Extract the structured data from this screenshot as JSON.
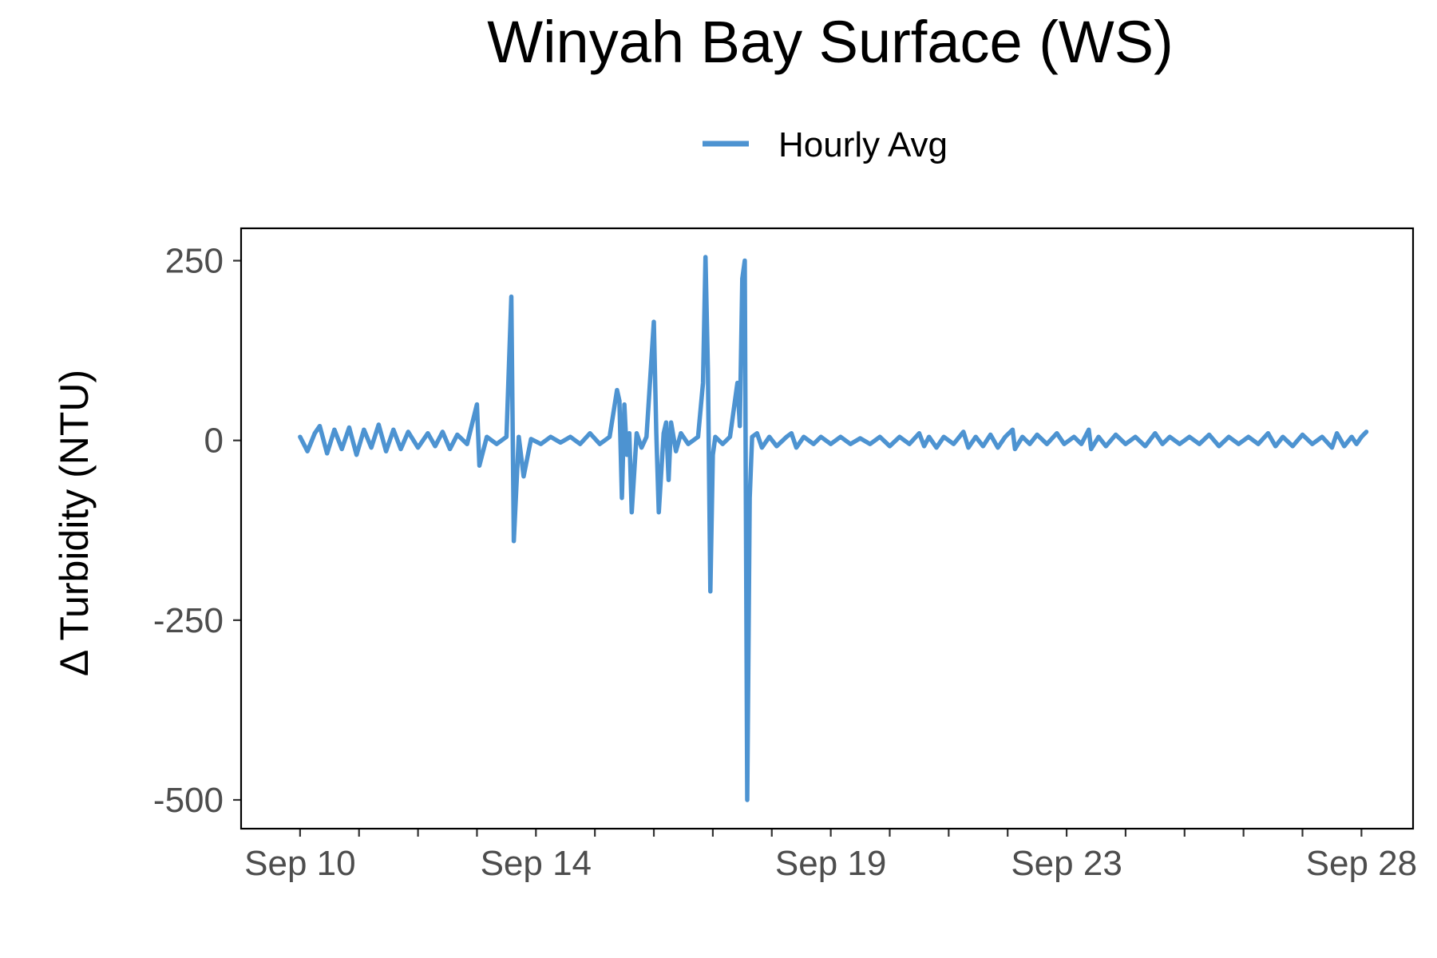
{
  "chart_data": {
    "type": "line",
    "title": "Winyah Bay Surface (WS)",
    "ylabel": "Δ Turbidity (NTU)",
    "xlabel": "",
    "legend_position": "top",
    "grid": false,
    "x_tick_labels": [
      {
        "date": "2022-09-10",
        "label": "Sep 10"
      },
      {
        "date": "2022-09-14",
        "label": "Sep 14"
      },
      {
        "date": "2022-09-19",
        "label": "Sep 19"
      },
      {
        "date": "2022-09-23",
        "label": "Sep 23"
      },
      {
        "date": "2022-09-28",
        "label": "Sep 28"
      }
    ],
    "x_minor_ticks": [
      "2022-09-11",
      "2022-09-12",
      "2022-09-13",
      "2022-09-15",
      "2022-09-16",
      "2022-09-17",
      "2022-09-18",
      "2022-09-20",
      "2022-09-21",
      "2022-09-22",
      "2022-09-24",
      "2022-09-25",
      "2022-09-26",
      "2022-09-27"
    ],
    "xlim": [
      "2022-09-09 00:00",
      "2022-09-28 21:00"
    ],
    "y_ticks": [
      250,
      0,
      -250,
      -500
    ],
    "y_tick_labels": [
      "250",
      "0",
      "-250",
      "-500"
    ],
    "ylim": [
      -540,
      295
    ],
    "series": [
      {
        "name": "Hourly Avg",
        "color": "#4d93d1",
        "points": [
          [
            "2022-09-10 00:00",
            5
          ],
          [
            "2022-09-10 03:00",
            -15
          ],
          [
            "2022-09-10 06:00",
            10
          ],
          [
            "2022-09-10 08:00",
            20
          ],
          [
            "2022-09-10 11:00",
            -18
          ],
          [
            "2022-09-10 14:00",
            15
          ],
          [
            "2022-09-10 17:00",
            -12
          ],
          [
            "2022-09-10 20:00",
            18
          ],
          [
            "2022-09-10 23:00",
            -20
          ],
          [
            "2022-09-11 02:00",
            15
          ],
          [
            "2022-09-11 05:00",
            -10
          ],
          [
            "2022-09-11 08:00",
            22
          ],
          [
            "2022-09-11 11:00",
            -15
          ],
          [
            "2022-09-11 14:00",
            15
          ],
          [
            "2022-09-11 17:00",
            -12
          ],
          [
            "2022-09-11 20:00",
            12
          ],
          [
            "2022-09-12 00:00",
            -10
          ],
          [
            "2022-09-12 04:00",
            10
          ],
          [
            "2022-09-12 07:00",
            -8
          ],
          [
            "2022-09-12 10:00",
            12
          ],
          [
            "2022-09-12 13:00",
            -12
          ],
          [
            "2022-09-12 16:00",
            8
          ],
          [
            "2022-09-12 20:00",
            -5
          ],
          [
            "2022-09-13 00:00",
            50
          ],
          [
            "2022-09-13 01:00",
            -35
          ],
          [
            "2022-09-13 04:00",
            5
          ],
          [
            "2022-09-13 08:00",
            -5
          ],
          [
            "2022-09-13 12:00",
            5
          ],
          [
            "2022-09-13 14:00",
            200
          ],
          [
            "2022-09-13 15:00",
            -140
          ],
          [
            "2022-09-13 17:00",
            5
          ],
          [
            "2022-09-13 19:00",
            -50
          ],
          [
            "2022-09-13 22:00",
            2
          ],
          [
            "2022-09-14 02:00",
            -5
          ],
          [
            "2022-09-14 06:00",
            5
          ],
          [
            "2022-09-14 10:00",
            -3
          ],
          [
            "2022-09-14 14:00",
            5
          ],
          [
            "2022-09-14 18:00",
            -5
          ],
          [
            "2022-09-14 22:00",
            10
          ],
          [
            "2022-09-15 02:00",
            -5
          ],
          [
            "2022-09-15 06:00",
            5
          ],
          [
            "2022-09-15 09:00",
            70
          ],
          [
            "2022-09-15 10:00",
            55
          ],
          [
            "2022-09-15 11:00",
            -80
          ],
          [
            "2022-09-15 12:00",
            50
          ],
          [
            "2022-09-15 13:00",
            -20
          ],
          [
            "2022-09-15 14:00",
            10
          ],
          [
            "2022-09-15 15:00",
            -100
          ],
          [
            "2022-09-15 17:00",
            10
          ],
          [
            "2022-09-15 19:00",
            -10
          ],
          [
            "2022-09-15 21:00",
            5
          ],
          [
            "2022-09-16 00:00",
            165
          ],
          [
            "2022-09-16 01:00",
            10
          ],
          [
            "2022-09-16 02:00",
            -100
          ],
          [
            "2022-09-16 04:00",
            10
          ],
          [
            "2022-09-16 05:00",
            25
          ],
          [
            "2022-09-16 06:00",
            -55
          ],
          [
            "2022-09-16 07:00",
            25
          ],
          [
            "2022-09-16 09:00",
            -15
          ],
          [
            "2022-09-16 11:00",
            10
          ],
          [
            "2022-09-16 14:00",
            -5
          ],
          [
            "2022-09-16 18:00",
            5
          ],
          [
            "2022-09-16 20:00",
            80
          ],
          [
            "2022-09-16 21:00",
            255
          ],
          [
            "2022-09-16 22:00",
            100
          ],
          [
            "2022-09-16 23:00",
            -210
          ],
          [
            "2022-09-17 00:00",
            -20
          ],
          [
            "2022-09-17 01:00",
            5
          ],
          [
            "2022-09-17 04:00",
            -5
          ],
          [
            "2022-09-17 07:00",
            5
          ],
          [
            "2022-09-17 10:00",
            80
          ],
          [
            "2022-09-17 11:00",
            20
          ],
          [
            "2022-09-17 12:00",
            225
          ],
          [
            "2022-09-17 13:00",
            250
          ],
          [
            "2022-09-17 14:00",
            -500
          ],
          [
            "2022-09-17 15:00",
            -80
          ],
          [
            "2022-09-17 16:00",
            5
          ],
          [
            "2022-09-17 18:00",
            10
          ],
          [
            "2022-09-17 20:00",
            -10
          ],
          [
            "2022-09-17 23:00",
            5
          ],
          [
            "2022-09-18 02:00",
            -8
          ],
          [
            "2022-09-18 06:00",
            5
          ],
          [
            "2022-09-18 08:00",
            10
          ],
          [
            "2022-09-18 10:00",
            -10
          ],
          [
            "2022-09-18 13:00",
            5
          ],
          [
            "2022-09-18 17:00",
            -5
          ],
          [
            "2022-09-18 20:00",
            5
          ],
          [
            "2022-09-19 00:00",
            -5
          ],
          [
            "2022-09-19 04:00",
            5
          ],
          [
            "2022-09-19 08:00",
            -5
          ],
          [
            "2022-09-19 12:00",
            3
          ],
          [
            "2022-09-19 16:00",
            -5
          ],
          [
            "2022-09-19 20:00",
            5
          ],
          [
            "2022-09-20 00:00",
            -8
          ],
          [
            "2022-09-20 04:00",
            5
          ],
          [
            "2022-09-20 08:00",
            -5
          ],
          [
            "2022-09-20 12:00",
            10
          ],
          [
            "2022-09-20 14:00",
            -8
          ],
          [
            "2022-09-20 16:00",
            5
          ],
          [
            "2022-09-20 19:00",
            -10
          ],
          [
            "2022-09-20 22:00",
            5
          ],
          [
            "2022-09-21 02:00",
            -5
          ],
          [
            "2022-09-21 06:00",
            12
          ],
          [
            "2022-09-21 08:00",
            -10
          ],
          [
            "2022-09-21 11:00",
            5
          ],
          [
            "2022-09-21 14:00",
            -8
          ],
          [
            "2022-09-21 17:00",
            8
          ],
          [
            "2022-09-21 20:00",
            -10
          ],
          [
            "2022-09-21 23:00",
            5
          ],
          [
            "2022-09-22 02:00",
            15
          ],
          [
            "2022-09-22 03:00",
            -12
          ],
          [
            "2022-09-22 06:00",
            5
          ],
          [
            "2022-09-22 09:00",
            -5
          ],
          [
            "2022-09-22 12:00",
            8
          ],
          [
            "2022-09-22 16:00",
            -5
          ],
          [
            "2022-09-22 20:00",
            10
          ],
          [
            "2022-09-22 23:00",
            -5
          ],
          [
            "2022-09-23 03:00",
            5
          ],
          [
            "2022-09-23 06:00",
            -5
          ],
          [
            "2022-09-23 09:00",
            15
          ],
          [
            "2022-09-23 10:00",
            -12
          ],
          [
            "2022-09-23 13:00",
            5
          ],
          [
            "2022-09-23 16:00",
            -8
          ],
          [
            "2022-09-23 20:00",
            8
          ],
          [
            "2022-09-24 00:00",
            -5
          ],
          [
            "2022-09-24 04:00",
            5
          ],
          [
            "2022-09-24 08:00",
            -8
          ],
          [
            "2022-09-24 12:00",
            10
          ],
          [
            "2022-09-24 15:00",
            -5
          ],
          [
            "2022-09-24 18:00",
            5
          ],
          [
            "2022-09-24 22:00",
            -5
          ],
          [
            "2022-09-25 02:00",
            5
          ],
          [
            "2022-09-25 06:00",
            -5
          ],
          [
            "2022-09-25 10:00",
            8
          ],
          [
            "2022-09-25 14:00",
            -8
          ],
          [
            "2022-09-25 18:00",
            5
          ],
          [
            "2022-09-25 22:00",
            -5
          ],
          [
            "2022-09-26 02:00",
            5
          ],
          [
            "2022-09-26 06:00",
            -5
          ],
          [
            "2022-09-26 10:00",
            10
          ],
          [
            "2022-09-26 13:00",
            -8
          ],
          [
            "2022-09-26 16:00",
            5
          ],
          [
            "2022-09-26 20:00",
            -8
          ],
          [
            "2022-09-27 00:00",
            8
          ],
          [
            "2022-09-27 04:00",
            -5
          ],
          [
            "2022-09-27 08:00",
            5
          ],
          [
            "2022-09-27 12:00",
            -10
          ],
          [
            "2022-09-27 14:00",
            10
          ],
          [
            "2022-09-27 17:00",
            -8
          ],
          [
            "2022-09-27 20:00",
            5
          ],
          [
            "2022-09-27 22:00",
            -5
          ],
          [
            "2022-09-28 00:00",
            5
          ],
          [
            "2022-09-28 02:00",
            12
          ]
        ]
      }
    ]
  }
}
